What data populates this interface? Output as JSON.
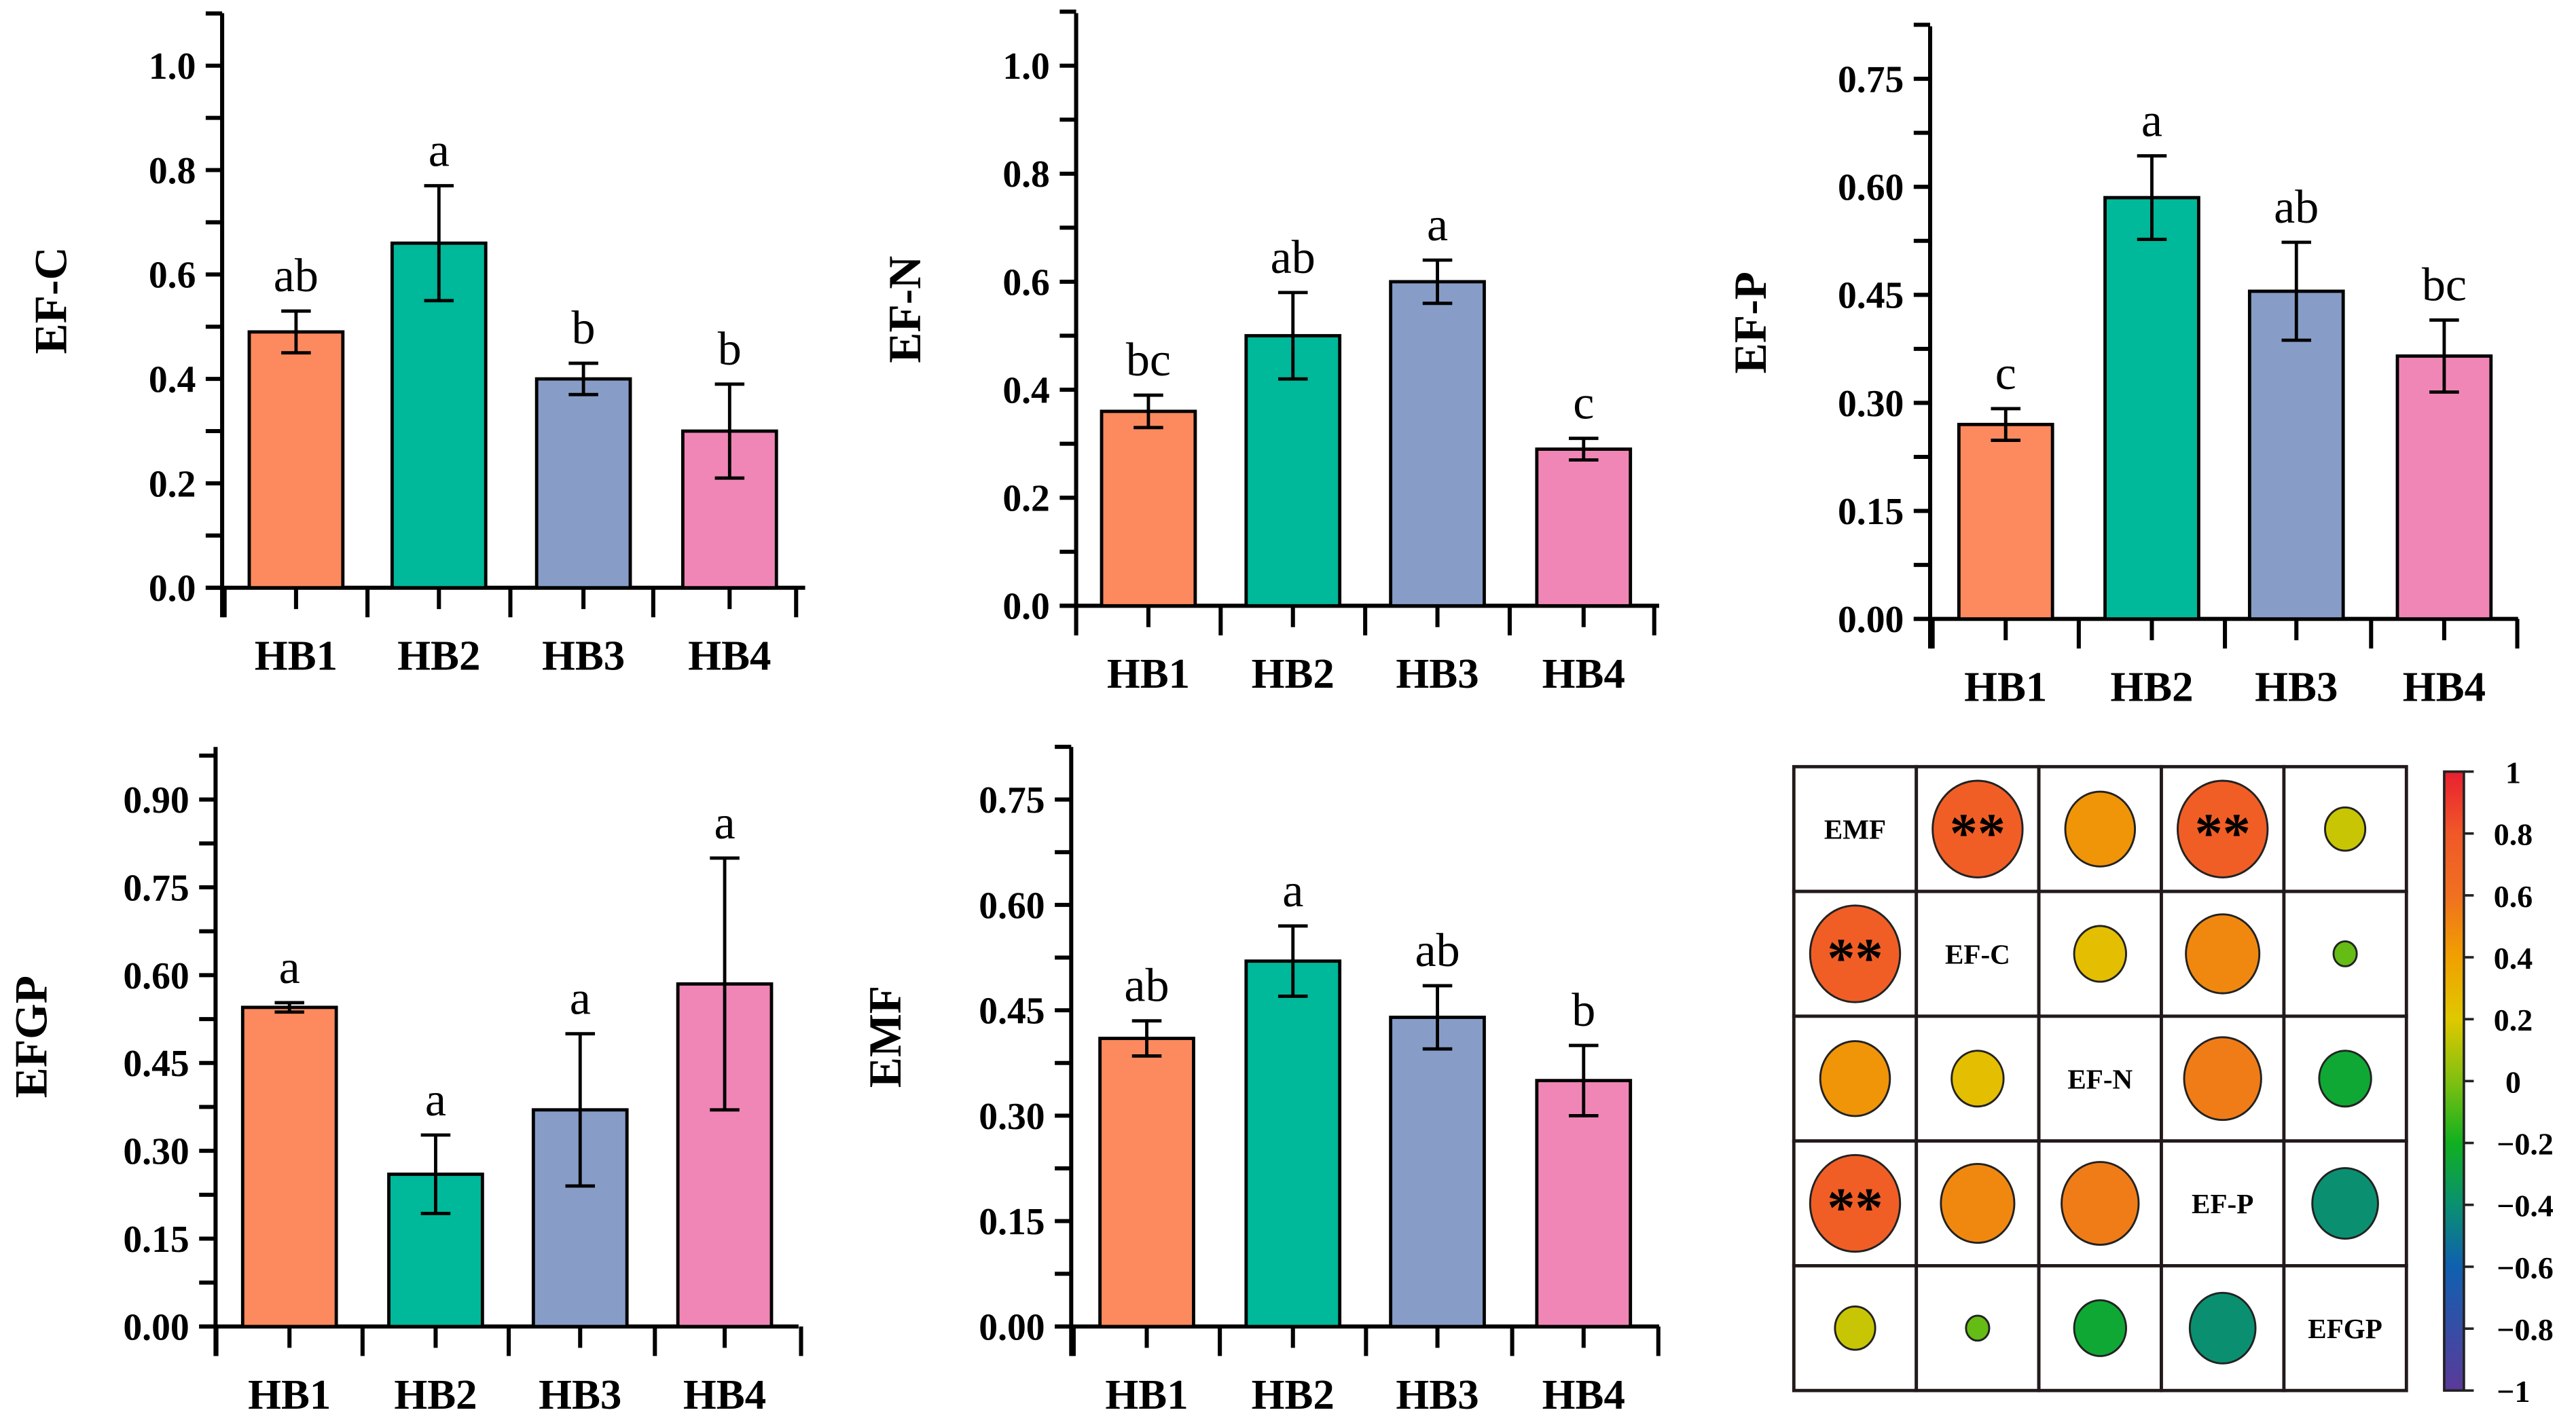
{
  "chart_data": [
    {
      "type": "bar",
      "ylabel": "EF-C",
      "categories": [
        "HB1",
        "HB2",
        "HB3",
        "HB4"
      ],
      "values": [
        0.49,
        0.66,
        0.4,
        0.3
      ],
      "errors": [
        0.04,
        0.11,
        0.03,
        0.09
      ],
      "letters": [
        "ab",
        "a",
        "b",
        "b"
      ],
      "ylim": [
        0,
        1.1
      ],
      "yticks": [
        0.0,
        0.2,
        0.4,
        0.6,
        0.8,
        1.0
      ],
      "ytick_labels": [
        "0.0",
        "0.2",
        "0.4",
        "0.6",
        "0.8",
        "1.0"
      ]
    },
    {
      "type": "bar",
      "ylabel": "EF-N",
      "categories": [
        "HB1",
        "HB2",
        "HB3",
        "HB4"
      ],
      "values": [
        0.36,
        0.5,
        0.6,
        0.29
      ],
      "errors": [
        0.03,
        0.08,
        0.04,
        0.02
      ],
      "letters": [
        "bc",
        "ab",
        "a",
        "c"
      ],
      "ylim": [
        0,
        1.0
      ],
      "yticks": [
        0.0,
        0.2,
        0.4,
        0.6,
        0.8,
        1.0
      ],
      "ytick_labels": [
        "0.0",
        "0.2",
        "0.4",
        "0.6",
        "0.8",
        "1.0"
      ]
    },
    {
      "type": "bar",
      "ylabel": "EF-P",
      "categories": [
        "HB1",
        "HB2",
        "HB3",
        "HB4"
      ],
      "values": [
        0.27,
        0.585,
        0.455,
        0.365
      ],
      "errors": [
        0.022,
        0.058,
        0.068,
        0.05
      ],
      "letters": [
        "c",
        "a",
        "ab",
        "bc"
      ],
      "ylim": [
        0,
        0.75
      ],
      "yticks": [
        0.0,
        0.15,
        0.3,
        0.45,
        0.6,
        0.75
      ],
      "ytick_labels": [
        "0.00",
        "0.15",
        "0.30",
        "0.45",
        "0.60",
        "0.75"
      ]
    },
    {
      "type": "bar",
      "ylabel": "EFGP",
      "categories": [
        "HB1",
        "HB2",
        "HB3",
        "HB4"
      ],
      "values": [
        0.545,
        0.26,
        0.37,
        0.585
      ],
      "errors": [
        0.008,
        0.067,
        0.13,
        0.215
      ],
      "letters": [
        "a",
        "a",
        "a",
        "a"
      ],
      "ylim": [
        0,
        0.9
      ],
      "yticks": [
        0.0,
        0.15,
        0.3,
        0.45,
        0.6,
        0.75,
        0.9
      ],
      "ytick_labels": [
        "0.00",
        "0.15",
        "0.30",
        "0.45",
        "0.60",
        "0.75",
        "0.90"
      ]
    },
    {
      "type": "bar",
      "ylabel": "EMF",
      "categories": [
        "HB1",
        "HB2",
        "HB3",
        "HB4"
      ],
      "values": [
        0.41,
        0.52,
        0.44,
        0.35
      ],
      "errors": [
        0.025,
        0.05,
        0.045,
        0.05
      ],
      "letters": [
        "ab",
        "a",
        "ab",
        "b"
      ],
      "ylim": [
        0,
        0.75
      ],
      "yticks": [
        0.0,
        0.15,
        0.3,
        0.45,
        0.6,
        0.75
      ],
      "ytick_labels": [
        "0.00",
        "0.15",
        "0.30",
        "0.45",
        "0.60",
        "0.75"
      ]
    },
    {
      "type": "heatmap",
      "variables": [
        "EMF",
        "EF-C",
        "EF-N",
        "EF-P",
        "EFGP"
      ],
      "matrix": [
        [
          1,
          0.75,
          0.45,
          0.75,
          0.15
        ],
        [
          0.75,
          1,
          0.25,
          0.5,
          -0.05
        ],
        [
          0.45,
          0.25,
          1,
          0.55,
          -0.25
        ],
        [
          0.75,
          0.5,
          0.55,
          1,
          -0.4
        ],
        [
          0.15,
          -0.05,
          -0.25,
          -0.4,
          1
        ]
      ],
      "significance": [
        [
          "",
          "**",
          "",
          "**",
          ""
        ],
        [
          "**",
          "",
          "",
          "",
          ""
        ],
        [
          "",
          "",
          "",
          "",
          ""
        ],
        [
          "**",
          "",
          "",
          "",
          ""
        ],
        [
          "",
          "",
          "",
          "",
          ""
        ]
      ],
      "colorbar": {
        "range": [
          -1,
          1
        ],
        "ticks": [
          1,
          0.8,
          0.6,
          0.4,
          0.2,
          0,
          -0.2,
          -0.4,
          -0.6,
          -0.8,
          -1
        ],
        "tick_labels": [
          "1",
          "0.8",
          "0.6",
          "0.4",
          "0.2",
          "0",
          "−0.2",
          "−0.4",
          "−0.6",
          "−0.8",
          "−1"
        ]
      }
    }
  ],
  "colors": {
    "HB1": "#fc8a5e",
    "HB2": "#00b89a",
    "HB3": "#879dc8",
    "HB4": "#f086b6"
  }
}
